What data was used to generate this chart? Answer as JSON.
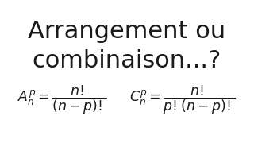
{
  "title_line1": "Arrangement ou",
  "title_line2": "combinaison...?",
  "formula_A": "$A_n^p = \\dfrac{n!}{(n-p)!}$",
  "formula_C": "$C_n^p = \\dfrac{n!}{p!(n-p)!}$",
  "bg_color": "#ffffff",
  "text_color": "#1a1a1a",
  "title_fontsize": 22,
  "formula_fontsize": 12.5
}
